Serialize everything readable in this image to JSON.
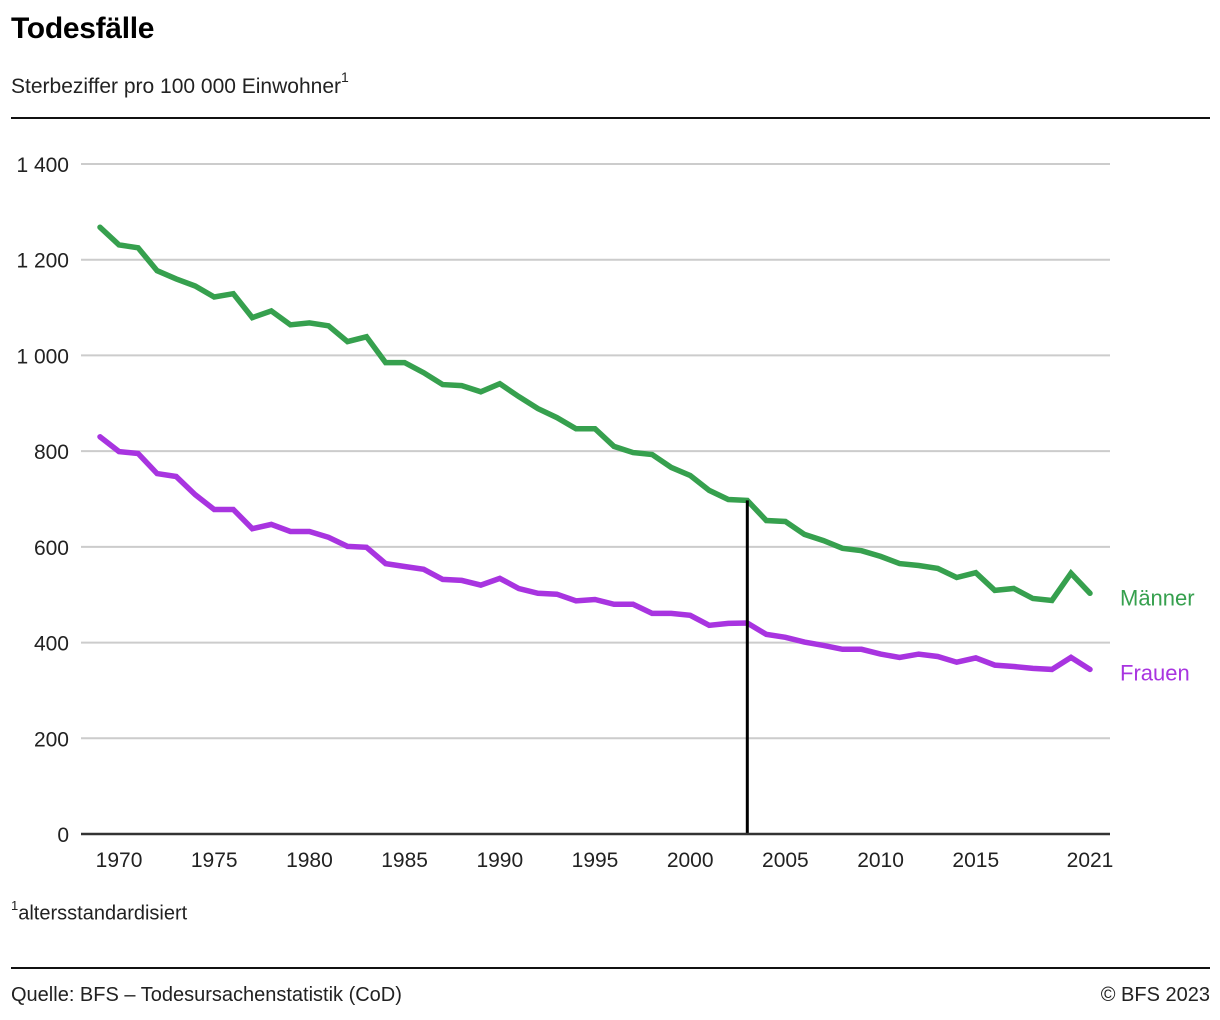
{
  "header": {
    "title": "Todesfälle",
    "subtitle": "Sterbeziffer pro 100 000 Einwohner",
    "subtitle_sup": "1"
  },
  "footer": {
    "footnote_sup": "1",
    "footnote": "altersstandardisiert",
    "source": "Quelle: BFS – Todesursachenstatistik (CoD)",
    "copyright": "© BFS 2023"
  },
  "chart_data": {
    "type": "line",
    "title": "Todesfälle",
    "subtitle": "Sterbeziffer pro 100 000 Einwohner",
    "xlabel": "",
    "ylabel": "",
    "xlim": [
      1969,
      2021
    ],
    "ylim": [
      0,
      1400
    ],
    "grid": true,
    "legend": "right (direct labels)",
    "x_ticks": [
      1970,
      1975,
      1980,
      1985,
      1990,
      1995,
      2000,
      2005,
      2010,
      2015,
      2021
    ],
    "x_tick_labels": [
      "1970",
      "1975",
      "1980",
      "1985",
      "1990",
      "1995",
      "2000",
      "2005",
      "2010",
      "2015",
      "2021"
    ],
    "y_ticks": [
      0,
      200,
      400,
      600,
      800,
      1000,
      1200,
      1400
    ],
    "y_tick_labels": [
      "0",
      "200",
      "400",
      "600",
      "800",
      "1 000",
      "1 200",
      "1 400"
    ],
    "x": [
      1969,
      1970,
      1971,
      1972,
      1973,
      1974,
      1975,
      1976,
      1977,
      1978,
      1979,
      1980,
      1981,
      1982,
      1983,
      1984,
      1985,
      1986,
      1987,
      1988,
      1989,
      1990,
      1991,
      1992,
      1993,
      1994,
      1995,
      1996,
      1997,
      1998,
      1999,
      2000,
      2001,
      2002,
      2003,
      2004,
      2005,
      2006,
      2007,
      2008,
      2009,
      2010,
      2011,
      2012,
      2013,
      2014,
      2015,
      2016,
      2017,
      2018,
      2019,
      2020,
      2021
    ],
    "series": [
      {
        "name": "Männer",
        "color": "#36a04e",
        "values": [
          1268,
          1231,
          1225,
          1177,
          1160,
          1145,
          1122,
          1129,
          1079,
          1093,
          1064,
          1068,
          1062,
          1029,
          1039,
          985,
          985,
          964,
          939,
          937,
          924,
          941,
          914,
          889,
          870,
          847,
          847,
          810,
          797,
          793,
          766,
          749,
          718,
          699,
          697,
          655,
          653,
          626,
          613,
          597,
          592,
          580,
          565,
          561,
          555,
          536,
          546,
          509,
          513,
          492,
          488,
          545,
          503
        ]
      },
      {
        "name": "Frauen",
        "color": "#a834e0",
        "values": [
          830,
          799,
          795,
          753,
          747,
          709,
          678,
          678,
          638,
          647,
          632,
          632,
          620,
          601,
          599,
          565,
          559,
          553,
          532,
          530,
          520,
          534,
          513,
          503,
          501,
          487,
          490,
          480,
          480,
          461,
          461,
          457,
          436,
          440,
          441,
          417,
          411,
          401,
          394,
          386,
          386,
          376,
          369,
          376,
          371,
          359,
          368,
          353,
          350,
          346,
          344,
          369,
          344
        ]
      }
    ],
    "annotations": [
      {
        "type": "vertical-line",
        "x": 2003,
        "from_value": 0,
        "to_value": 697,
        "color": "#000000"
      }
    ]
  }
}
